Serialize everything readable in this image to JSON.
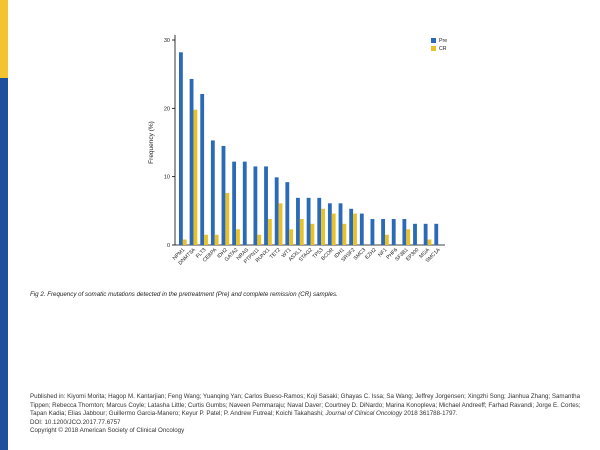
{
  "colors": {
    "pre": "#2a6ab7",
    "cr": "#e8c12a",
    "side_bar": "#1f4e9c",
    "side_accent": "#f4c430"
  },
  "chart_data": {
    "type": "bar",
    "title": "",
    "ylabel": "Frequency (%)",
    "xlabel": "",
    "ylim": [
      0,
      30
    ],
    "yticks": [
      0,
      10,
      20,
      30
    ],
    "grid": false,
    "legend_position": "top-right",
    "categories": [
      "NPM1",
      "DNMT3A",
      "FLT3",
      "CEBPA",
      "IDH2",
      "GATA2",
      "NRAS",
      "PTPN11",
      "RUNX1",
      "TET2",
      "WT1",
      "ASXL1",
      "STAG2",
      "TP53",
      "BCOR",
      "IDH1",
      "SRSF2",
      "SMC3",
      "EZH2",
      "NF1",
      "PHF6",
      "SF3B1",
      "EP300",
      "MGA",
      "SMC1A"
    ],
    "series": [
      {
        "name": "Pre",
        "values": [
          28.2,
          24.3,
          22.1,
          15.3,
          14.5,
          12.2,
          12.2,
          11.5,
          11.5,
          9.9,
          9.2,
          6.9,
          6.9,
          6.9,
          6.1,
          6.1,
          5.3,
          4.6,
          3.8,
          3.8,
          3.8,
          3.8,
          3.1,
          3.1,
          3.1
        ]
      },
      {
        "name": "CR",
        "values": [
          0.8,
          19.8,
          1.5,
          1.5,
          7.6,
          2.3,
          0.0,
          1.5,
          3.8,
          6.1,
          2.3,
          3.8,
          3.1,
          5.3,
          4.6,
          3.1,
          4.6,
          0.0,
          0.0,
          1.5,
          0.0,
          2.3,
          0.0,
          0.8,
          0.0
        ]
      }
    ]
  },
  "caption": "Fig 2. Frequency of somatic mutations detected in the pretreatment (Pre) and complete remission (CR) samples.",
  "footer": {
    "published_prefix": "Published in: Kiyomi Morita; Hagop M. Kantarjian; Feng Wang; Yuanqing Yan; Carlos Bueso-Ramos; Koji Sasaki; Ghayas C. Issa; Sa Wang; Jeffrey Jorgensen; Xingzhi Song; Jianhua Zhang; Samantha Tippen; Rebecca Thornton; Marcus Coyle; Latasha Little; Curtis Gumbs; Naveen Pemmaraju; Naval Daver; Courtney D. DiNardo; Marina Konopleva; Michael Andreeff; Farhad Ravandi; Jorge E. Cortes; Tapan Kadia; Elias Jabbour; Guillermo Garcia-Manero; Keyur P. Patel; P. Andrew Futreal; Koichi Takahashi;",
    "journal": "Journal of Clinical Oncology",
    "citation": "2018 361788-1797.",
    "doi": "DOI: 10.1200/JCO.2017.77.6757",
    "copyright": "Copyright © 2018 American Society of Clinical Oncology"
  }
}
